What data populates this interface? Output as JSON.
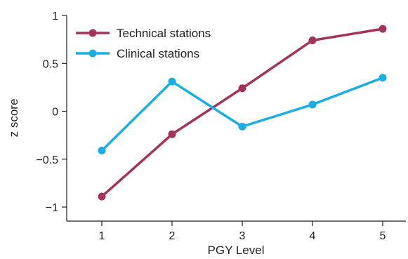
{
  "chart_data": {
    "type": "line",
    "title": "",
    "xlabel": "PGY Level",
    "ylabel": "z score",
    "categories": [
      "1",
      "2",
      "3",
      "4",
      "5"
    ],
    "x": [
      1,
      2,
      3,
      4,
      5
    ],
    "xlim": [
      0.5,
      5.5
    ],
    "ylim": [
      -1,
      1
    ],
    "yticks": [
      1,
      0.5,
      0,
      -0.5,
      -1
    ],
    "ytick_labels": [
      "1",
      "0.5",
      "0",
      "−0.5",
      "−1"
    ],
    "grid": false,
    "legend_position": "top-left",
    "series": [
      {
        "name": "Technical stations",
        "color": "#a3325c",
        "values": [
          -0.89,
          -0.24,
          0.24,
          0.74,
          0.86
        ]
      },
      {
        "name": "Clinical stations",
        "color": "#1aaee4",
        "values": [
          -0.41,
          0.31,
          -0.16,
          0.07,
          0.35
        ]
      }
    ]
  }
}
